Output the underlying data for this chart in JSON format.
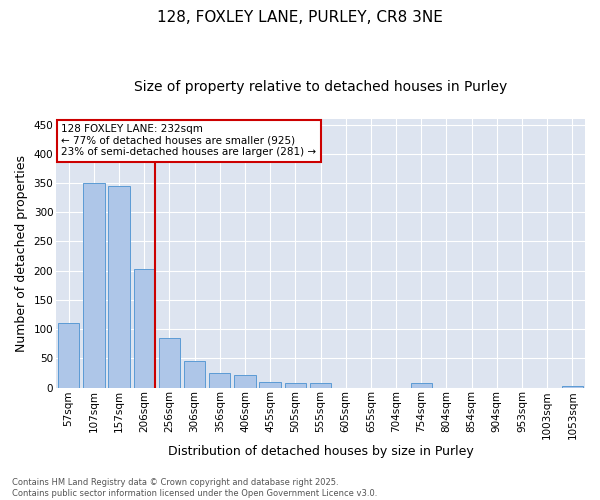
{
  "title": "128, FOXLEY LANE, PURLEY, CR8 3NE",
  "subtitle": "Size of property relative to detached houses in Purley",
  "xlabel": "Distribution of detached houses by size in Purley",
  "ylabel": "Number of detached properties",
  "categories": [
    "57sqm",
    "107sqm",
    "157sqm",
    "206sqm",
    "256sqm",
    "306sqm",
    "356sqm",
    "406sqm",
    "455sqm",
    "505sqm",
    "555sqm",
    "605sqm",
    "655sqm",
    "704sqm",
    "754sqm",
    "804sqm",
    "854sqm",
    "904sqm",
    "953sqm",
    "1003sqm",
    "1053sqm"
  ],
  "values": [
    110,
    350,
    345,
    203,
    85,
    46,
    25,
    22,
    10,
    7,
    7,
    0,
    0,
    0,
    8,
    0,
    0,
    0,
    0,
    0,
    3
  ],
  "bar_color": "#aec6e8",
  "bar_edge_color": "#5b9bd5",
  "vline_x_idx": 3,
  "vline_color": "#cc0000",
  "annotation_text": "128 FOXLEY LANE: 232sqm\n← 77% of detached houses are smaller (925)\n23% of semi-detached houses are larger (281) →",
  "annotation_box_color": "#ffffff",
  "annotation_edge_color": "#cc0000",
  "ylim": [
    0,
    460
  ],
  "yticks": [
    0,
    50,
    100,
    150,
    200,
    250,
    300,
    350,
    400,
    450
  ],
  "background_color": "#dde4f0",
  "footer": "Contains HM Land Registry data © Crown copyright and database right 2025.\nContains public sector information licensed under the Open Government Licence v3.0.",
  "title_fontsize": 11,
  "subtitle_fontsize": 10,
  "tick_fontsize": 7.5,
  "ylabel_fontsize": 9,
  "xlabel_fontsize": 9,
  "annotation_fontsize": 7.5,
  "footer_fontsize": 6
}
